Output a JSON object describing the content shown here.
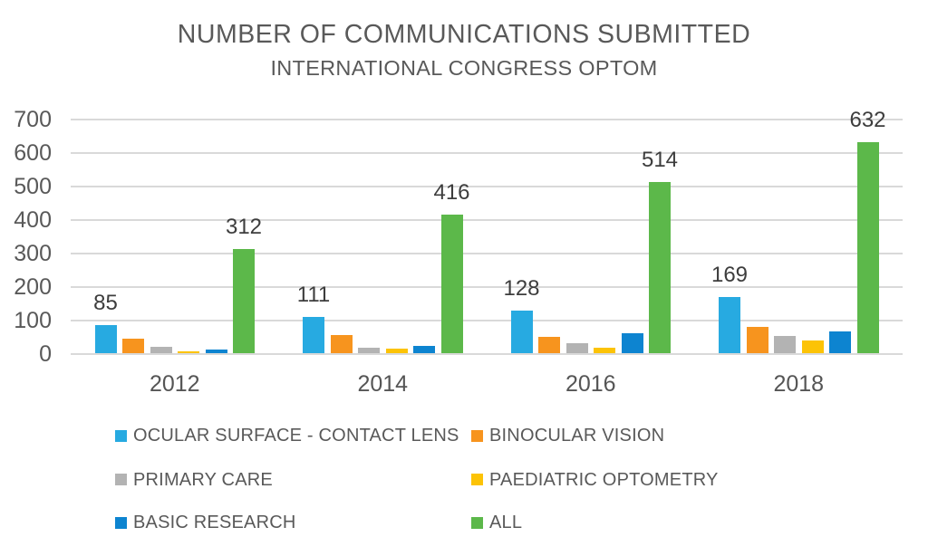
{
  "chart_data": {
    "type": "bar",
    "title": "NUMBER OF COMMUNICATIONS SUBMITTED",
    "subtitle": "INTERNATIONAL CONGRESS OPTOM",
    "categories": [
      "2012",
      "2014",
      "2016",
      "2018"
    ],
    "series": [
      {
        "name": "OCULAR SURFACE - CONTACT LENS",
        "color": "#27aae1",
        "values": [
          85,
          111,
          128,
          169
        ],
        "data_labels": true
      },
      {
        "name": "BINOCULAR VISION",
        "color": "#f7941e",
        "values": [
          45,
          56,
          50,
          80
        ],
        "data_labels": false
      },
      {
        "name": "PRIMARY CARE",
        "color": "#b3b3b3",
        "values": [
          19,
          17,
          30,
          53
        ],
        "data_labels": false
      },
      {
        "name": "PAEDIATRIC OPTOMETRY",
        "color": "#fcc306",
        "values": [
          7,
          16,
          17,
          40
        ],
        "data_labels": false
      },
      {
        "name": "BASIC RESEARCH",
        "color": "#0d84d0",
        "values": [
          13,
          22,
          60,
          66
        ],
        "data_labels": false
      },
      {
        "name": "ALL",
        "color": "#5cb84a",
        "values": [
          312,
          416,
          514,
          632
        ],
        "data_labels": true
      }
    ],
    "xlabel": "",
    "ylabel": "",
    "ylim": [
      0,
      700
    ],
    "ytick_step": 100,
    "grid": "horizontal",
    "legend_position": "bottom",
    "gridline_color": "#d9d9d9"
  }
}
